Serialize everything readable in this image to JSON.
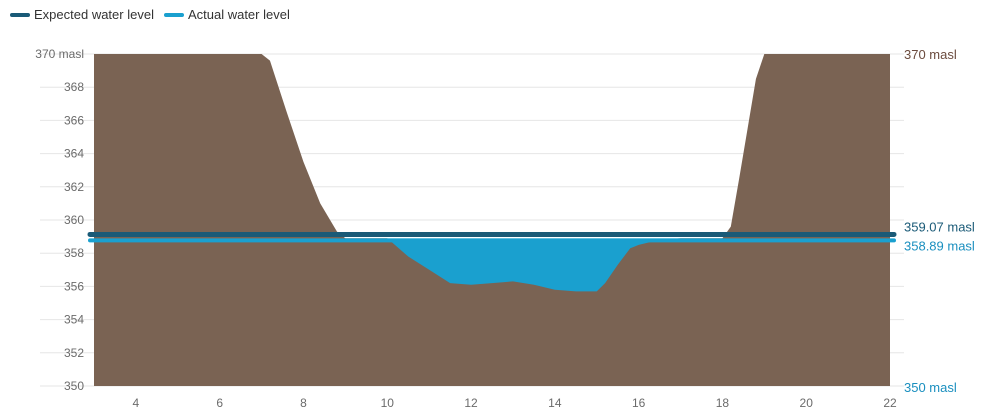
{
  "legend": {
    "expected_label": "Expected water level",
    "actual_label": "Actual water level"
  },
  "colors": {
    "terrain": "#7a6353",
    "water": "#1aa0cf",
    "expected_line": "#1a5a77",
    "actual_line": "#1aa0cf",
    "grid": "#e6e6e6",
    "axis_text": "#6b6b6b",
    "top_label": "#6b4b3e",
    "water_label": "#1a8fbf"
  },
  "chart_data": {
    "type": "area",
    "xlabel": "",
    "ylabel": "",
    "xlim": [
      3,
      22
    ],
    "ylim": [
      350,
      370
    ],
    "x_ticks": [
      4,
      6,
      8,
      10,
      12,
      14,
      16,
      18,
      20,
      22
    ],
    "y_ticks": [
      350,
      352,
      354,
      356,
      358,
      360,
      362,
      364,
      366,
      368,
      370
    ],
    "y_tick_suffix_top": " masl",
    "terrain_profile": {
      "x": [
        3,
        7,
        7.2,
        7.6,
        8.0,
        8.4,
        8.8,
        9.0,
        10,
        10.5,
        11,
        11.5,
        12,
        12.5,
        13,
        13.5,
        14,
        14.5,
        15,
        15.2,
        15.5,
        15.8,
        16,
        16.5,
        17,
        17.5,
        18,
        18.2,
        18.4,
        18.6,
        18.8,
        19.0,
        22
      ],
      "y": [
        370,
        370,
        369.6,
        366.5,
        363.5,
        361.0,
        359.3,
        358.9,
        358.9,
        357.8,
        357.0,
        356.2,
        356.1,
        356.2,
        356.3,
        356.1,
        355.8,
        355.7,
        355.7,
        356.2,
        357.3,
        358.3,
        358.5,
        358.8,
        358.9,
        358.9,
        358.9,
        359.6,
        362.5,
        365.5,
        368.5,
        370,
        370
      ]
    },
    "series": [
      {
        "name": "Expected water level",
        "values": [
          359.07,
          359.07
        ],
        "x": [
          3,
          22
        ]
      },
      {
        "name": "Actual water level",
        "values": [
          358.89,
          358.89
        ],
        "x": [
          3,
          22
        ]
      }
    ],
    "right_labels": [
      {
        "value": 370,
        "text": "370 masl",
        "color_key": "top_label"
      },
      {
        "value": 359.07,
        "text": "359.07 masl",
        "color_key": "expected_line"
      },
      {
        "value": 358.89,
        "text": "358.89 masl",
        "color_key": "water_label"
      },
      {
        "value": 350,
        "text": "350 masl",
        "color_key": "water_label"
      }
    ]
  }
}
